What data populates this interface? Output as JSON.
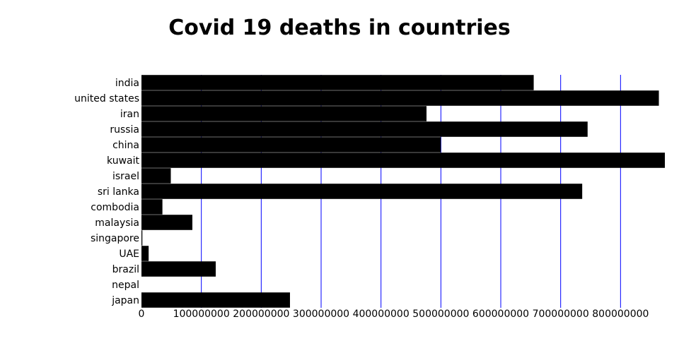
{
  "chart_data": {
    "type": "bar",
    "orientation": "horizontal",
    "title": "Covid 19 deaths in countries",
    "xlabel": "",
    "ylabel": "",
    "categories": [
      "india",
      "united states",
      "iran",
      "russia",
      "china",
      "kuwait",
      "israel",
      "sri lanka",
      "combodia",
      "malaysia",
      "singapore",
      "UAE",
      "brazil",
      "nepal",
      "japan"
    ],
    "values": [
      655000000,
      864000000,
      476000000,
      745000000,
      500000000,
      874000000,
      49000000,
      736000000,
      35000000,
      85000000,
      1500000,
      12000000,
      124000000,
      0,
      248000000
    ],
    "xlim": [
      0,
      874000000
    ],
    "xticks": [
      0,
      100000000,
      200000000,
      300000000,
      400000000,
      500000000,
      600000000,
      700000000,
      800000000
    ],
    "xtick_labels": [
      "0",
      "100000000",
      "200000000",
      "300000000",
      "400000000",
      "500000000",
      "600000000",
      "700000000",
      "800000000"
    ],
    "grid": true,
    "colors": {
      "bar": "#000000",
      "grid": "#0000ff",
      "text": "#000000"
    }
  }
}
